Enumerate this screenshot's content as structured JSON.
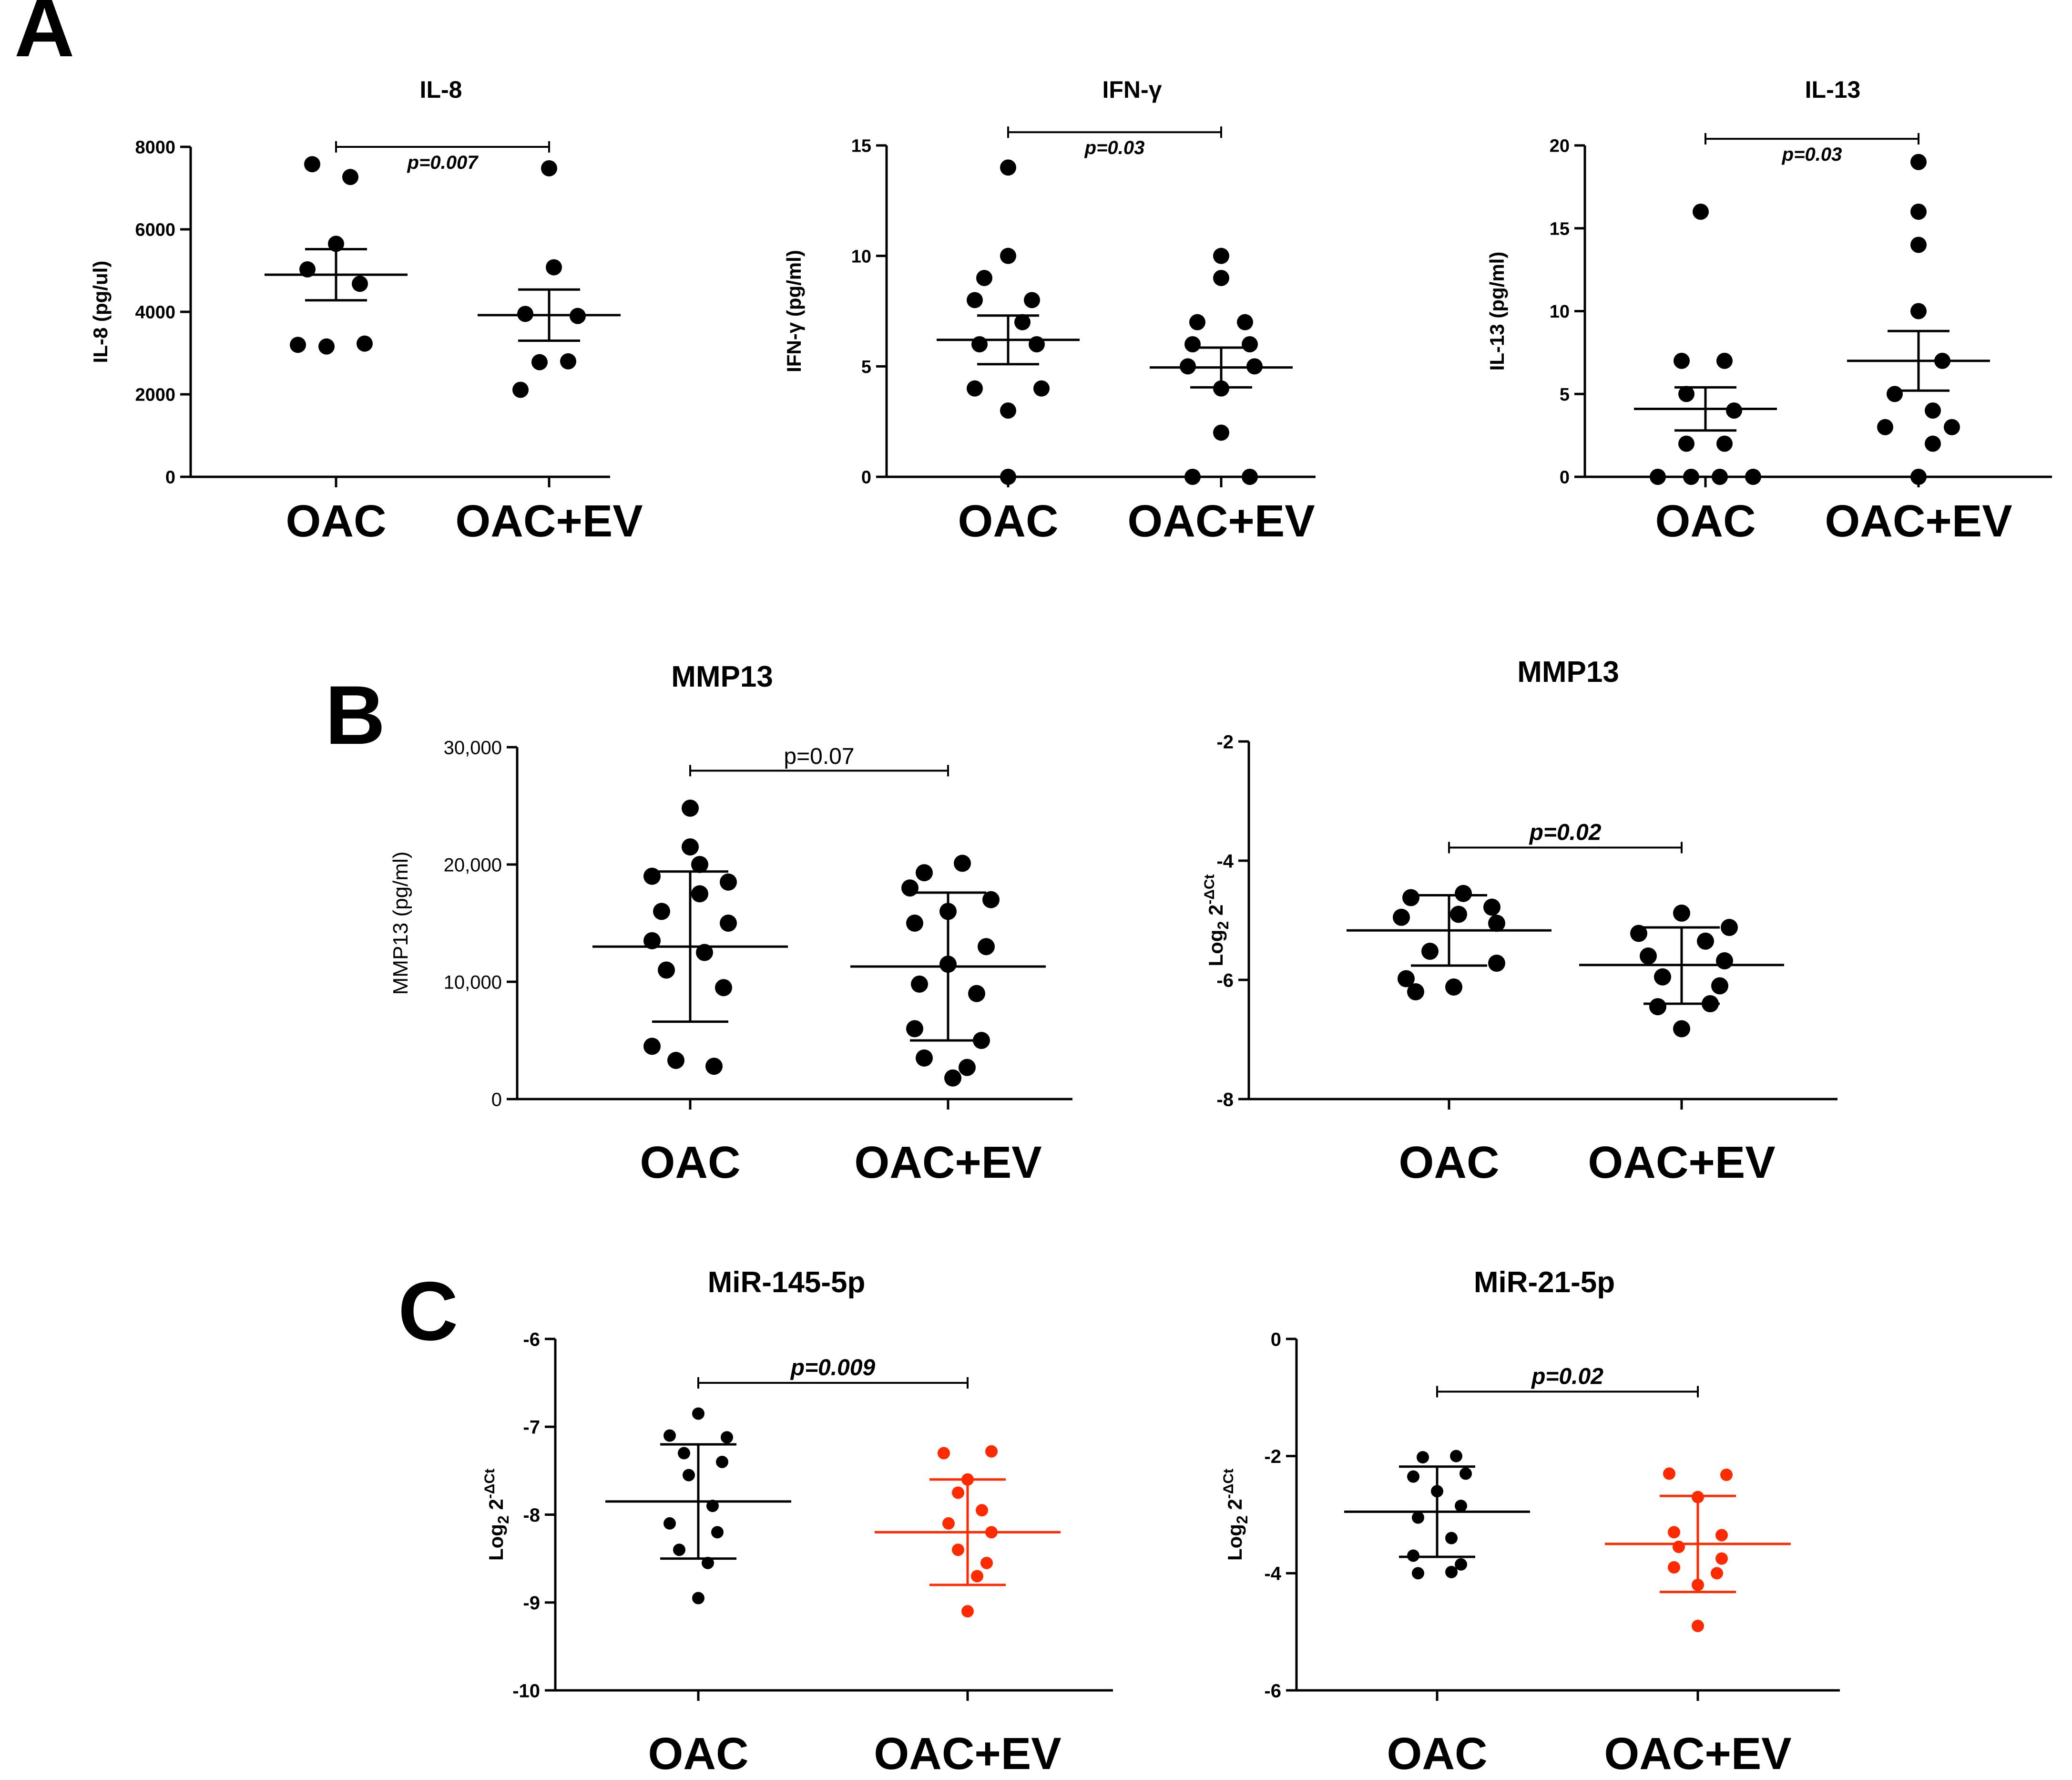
{
  "panel_labels": [
    "A",
    "B",
    "C"
  ],
  "chart_data": [
    {
      "id": "il8",
      "panel": "A",
      "type": "scatter",
      "title": "IL-8",
      "ylabel": "IL-8 (pg/ul)",
      "categories": [
        "OAC",
        "OAC+EV"
      ],
      "ylim": [
        0,
        8000
      ],
      "yticks": [
        0,
        2000,
        4000,
        6000,
        8000
      ],
      "ytick_labels": [
        "0",
        "2000",
        "4000",
        "6000",
        "8000"
      ],
      "series": [
        {
          "name": "OAC",
          "color": "#000000",
          "mean": 4900,
          "err_low": 4280,
          "err_high": 5520,
          "points": [
            [
              -0.05,
              7580
            ],
            [
              0.03,
              7270
            ],
            [
              0,
              5650
            ],
            [
              -0.06,
              5030
            ],
            [
              0.05,
              4680
            ],
            [
              -0.08,
              3200
            ],
            [
              -0.02,
              3160
            ],
            [
              0.06,
              3230
            ]
          ]
        },
        {
          "name": "OAC+EV",
          "color": "#000000",
          "mean": 3920,
          "err_low": 3300,
          "err_high": 4540,
          "points": [
            [
              0,
              7480
            ],
            [
              0.01,
              5080
            ],
            [
              -0.05,
              3950
            ],
            [
              0.06,
              3900
            ],
            [
              0.04,
              2800
            ],
            [
              -0.02,
              2780
            ],
            [
              -0.06,
              2110
            ]
          ]
        }
      ],
      "sig": {
        "text": "p=0.007",
        "y": 8000
      }
    },
    {
      "id": "ifng",
      "panel": "A",
      "type": "scatter",
      "title": "IFN-γ",
      "ylabel": "IFN-γ (pg/ml)",
      "categories": [
        "OAC",
        "OAC+EV"
      ],
      "ylim": [
        0,
        15
      ],
      "yticks": [
        0,
        5,
        10,
        15
      ],
      "ytick_labels": [
        "0",
        "5",
        "10",
        "15"
      ],
      "series": [
        {
          "name": "OAC",
          "color": "#000000",
          "mean": 6.2,
          "err_low": 5.1,
          "err_high": 7.3,
          "points": [
            [
              0,
              14
            ],
            [
              0,
              10
            ],
            [
              -0.05,
              9
            ],
            [
              -0.07,
              8
            ],
            [
              0.05,
              8
            ],
            [
              0.03,
              7
            ],
            [
              -0.06,
              6
            ],
            [
              0.06,
              6
            ],
            [
              -0.07,
              4
            ],
            [
              0.07,
              4
            ],
            [
              0,
              3
            ],
            [
              0,
              0
            ]
          ]
        },
        {
          "name": "OAC+EV",
          "color": "#000000",
          "mean": 4.95,
          "err_low": 4.05,
          "err_high": 5.85,
          "points": [
            [
              0,
              10
            ],
            [
              0,
              9
            ],
            [
              -0.05,
              7
            ],
            [
              0.05,
              7
            ],
            [
              -0.06,
              6
            ],
            [
              0.06,
              6
            ],
            [
              -0.07,
              5
            ],
            [
              0.07,
              5
            ],
            [
              0,
              4
            ],
            [
              0,
              2
            ],
            [
              -0.06,
              0
            ],
            [
              0.06,
              0
            ]
          ]
        }
      ],
      "sig": {
        "text": "p=0.03",
        "y": 15.6
      }
    },
    {
      "id": "il13",
      "panel": "A",
      "type": "scatter",
      "title": "IL-13",
      "ylabel": "IL-13 (pg/ml)",
      "categories": [
        "OAC",
        "OAC+EV"
      ],
      "ylim": [
        0,
        20
      ],
      "yticks": [
        0,
        5,
        10,
        15,
        20
      ],
      "ytick_labels": [
        "0",
        "5",
        "10",
        "15",
        "20"
      ],
      "series": [
        {
          "name": "OAC",
          "color": "#000000",
          "mean": 4.1,
          "err_low": 2.8,
          "err_high": 5.4,
          "points": [
            [
              -0.01,
              16
            ],
            [
              -0.05,
              7
            ],
            [
              0.04,
              7
            ],
            [
              -0.04,
              5
            ],
            [
              0.06,
              4
            ],
            [
              -0.04,
              2
            ],
            [
              0.04,
              2
            ],
            [
              -0.1,
              0
            ],
            [
              -0.03,
              0
            ],
            [
              0.03,
              0
            ],
            [
              0.1,
              0
            ]
          ]
        },
        {
          "name": "OAC+EV",
          "color": "#000000",
          "mean": 7.0,
          "err_low": 5.2,
          "err_high": 8.8,
          "points": [
            [
              0,
              19
            ],
            [
              0,
              16
            ],
            [
              0,
              14
            ],
            [
              0,
              10
            ],
            [
              0.05,
              7
            ],
            [
              -0.05,
              5
            ],
            [
              0.03,
              4
            ],
            [
              -0.07,
              3
            ],
            [
              0.07,
              3
            ],
            [
              0.03,
              2
            ],
            [
              0,
              0
            ]
          ]
        }
      ],
      "sig": {
        "text": "p=0.03",
        "y": 20.4
      }
    },
    {
      "id": "mmp13_protein",
      "panel": "B",
      "type": "scatter",
      "style": "serif",
      "title": "MMP13",
      "ylabel": "MMP13 (pg/ml)",
      "categories": [
        "OAC",
        "OAC+EV"
      ],
      "ylim": [
        0,
        30000
      ],
      "yticks": [
        0,
        10000,
        20000,
        30000
      ],
      "ytick_labels": [
        "0",
        "10,000",
        "20,000",
        "30,000"
      ],
      "series": [
        {
          "name": "OAC",
          "color": "#000000",
          "mean": 13000,
          "err_low": 6600,
          "err_high": 19400,
          "points": [
            [
              0,
              24800
            ],
            [
              0,
              21500
            ],
            [
              0.02,
              20000
            ],
            [
              -0.08,
              19000
            ],
            [
              0.08,
              18500
            ],
            [
              0.02,
              17500
            ],
            [
              -0.06,
              16000
            ],
            [
              0.08,
              15000
            ],
            [
              -0.08,
              13500
            ],
            [
              0.03,
              12500
            ],
            [
              -0.05,
              11000
            ],
            [
              0.07,
              9500
            ],
            [
              -0.08,
              4500
            ],
            [
              -0.03,
              3300
            ],
            [
              0.05,
              2800
            ]
          ]
        },
        {
          "name": "OAC+EV",
          "color": "#000000",
          "mean": 11300,
          "err_low": 5000,
          "err_high": 17600,
          "points": [
            [
              0.03,
              20100
            ],
            [
              -0.05,
              19300
            ],
            [
              -0.08,
              18000
            ],
            [
              0.09,
              17000
            ],
            [
              0,
              16000
            ],
            [
              -0.07,
              15000
            ],
            [
              0.08,
              13000
            ],
            [
              0,
              11500
            ],
            [
              -0.06,
              9800
            ],
            [
              0.06,
              9000
            ],
            [
              -0.07,
              6000
            ],
            [
              0.07,
              5000
            ],
            [
              -0.05,
              3500
            ],
            [
              0.04,
              2700
            ],
            [
              0.01,
              1800
            ]
          ]
        }
      ],
      "sig": {
        "text": "p=0.07",
        "y": 28000
      }
    },
    {
      "id": "mmp13_expr",
      "panel": "B",
      "type": "scatter",
      "title": "MMP13",
      "ylabel": "Log₂ 2⁻ΔCt",
      "ylabel_parts": {
        "base": "Log",
        "sub": "2",
        "mid": " 2",
        "sup": "-ΔCt"
      },
      "categories": [
        "OAC",
        "OAC+EV"
      ],
      "ylim": [
        -8,
        -2
      ],
      "yticks": [
        -8,
        -6,
        -4,
        -2
      ],
      "ytick_labels": [
        "-8",
        "-6",
        "-4",
        "-2"
      ],
      "series": [
        {
          "name": "OAC",
          "color": "#000000",
          "mean": -5.17,
          "err_low": -5.76,
          "err_high": -4.58,
          "points": [
            [
              -0.08,
              -4.62
            ],
            [
              0.03,
              -4.55
            ],
            [
              0.09,
              -4.78
            ],
            [
              -0.1,
              -4.95
            ],
            [
              0.02,
              -4.9
            ],
            [
              0.1,
              -5.05
            ],
            [
              -0.04,
              -5.52
            ],
            [
              0.1,
              -5.72
            ],
            [
              -0.09,
              -5.98
            ],
            [
              0.01,
              -6.12
            ],
            [
              -0.07,
              -6.2
            ]
          ]
        },
        {
          "name": "OAC+EV",
          "color": "#000000",
          "mean": -5.75,
          "err_low": -6.4,
          "err_high": -5.12
        },
        {
          "name": "OAC+EV_points",
          "color": "#000000",
          "points": [
            [
              0,
              -4.88
            ],
            [
              -0.09,
              -5.22
            ],
            [
              0.1,
              -5.12
            ],
            [
              0.05,
              -5.35
            ],
            [
              -0.07,
              -5.6
            ],
            [
              0.09,
              -5.68
            ],
            [
              -0.04,
              -5.95
            ],
            [
              0.08,
              -6.1
            ],
            [
              0.06,
              -6.4
            ],
            [
              -0.05,
              -6.45
            ],
            [
              0,
              -6.82
            ]
          ]
        }
      ],
      "sig": {
        "text": "p=0.02",
        "y": -3.78
      }
    },
    {
      "id": "mir145",
      "panel": "C",
      "type": "scatter",
      "title": "MiR-145-5p",
      "ylabel": "Log₂ 2⁻ΔCt",
      "ylabel_parts": {
        "base": "Log",
        "sub": "2",
        "mid": " 2",
        "sup": "-ΔCt"
      },
      "categories": [
        "OAC",
        "OAC+EV"
      ],
      "ylim": [
        -10,
        -6
      ],
      "yticks": [
        -10,
        -9,
        -8,
        -7,
        -6
      ],
      "ytick_labels": [
        "-10",
        "-9",
        "-8",
        "-7",
        "-6"
      ],
      "series": [
        {
          "name": "OAC",
          "color": "#000000",
          "mean": -7.85,
          "err_low": -8.5,
          "err_high": -7.2,
          "points": [
            [
              0,
              -6.85
            ],
            [
              -0.06,
              -7.1
            ],
            [
              0.06,
              -7.12
            ],
            [
              -0.03,
              -7.3
            ],
            [
              0.05,
              -7.4
            ],
            [
              -0.02,
              -7.55
            ],
            [
              0.03,
              -7.9
            ],
            [
              -0.06,
              -8.1
            ],
            [
              0.04,
              -8.2
            ],
            [
              -0.04,
              -8.4
            ],
            [
              0.02,
              -8.55
            ],
            [
              0,
              -8.95
            ]
          ]
        },
        {
          "name": "OAC+EV",
          "color": "#ff2a00",
          "mean": -8.2,
          "err_low": -8.8,
          "err_high": -7.6,
          "points": [
            [
              -0.05,
              -7.3
            ],
            [
              0.05,
              -7.28
            ],
            [
              0,
              -7.6
            ],
            [
              -0.02,
              -7.75
            ],
            [
              0.03,
              -7.95
            ],
            [
              -0.04,
              -8.1
            ],
            [
              0.05,
              -8.2
            ],
            [
              -0.02,
              -8.4
            ],
            [
              0.04,
              -8.55
            ],
            [
              0.02,
              -8.7
            ],
            [
              0,
              -9.1
            ]
          ]
        }
      ],
      "sig": {
        "text": "p=0.009",
        "y": -6.5
      }
    },
    {
      "id": "mir21",
      "panel": "C",
      "type": "scatter",
      "title": "MiR-21-5p",
      "ylabel": "Log₂ 2⁻ΔCt",
      "ylabel_parts": {
        "base": "Log",
        "sub": "2",
        "mid": " 2",
        "sup": "-ΔCt"
      },
      "categories": [
        "OAC",
        "OAC+EV"
      ],
      "ylim": [
        -6,
        0
      ],
      "yticks": [
        -6,
        -4,
        -2,
        0
      ],
      "ytick_labels": [
        "-6",
        "-4",
        "-2",
        "0"
      ],
      "series": [
        {
          "name": "OAC",
          "color": "#000000",
          "mean": -2.95,
          "err_low": -3.72,
          "err_high": -2.18,
          "points": [
            [
              -0.03,
              -2.02
            ],
            [
              0.04,
              -2.0
            ],
            [
              -0.05,
              -2.35
            ],
            [
              0.06,
              -2.3
            ],
            [
              0,
              -2.6
            ],
            [
              0.05,
              -2.85
            ],
            [
              -0.04,
              -3.05
            ],
            [
              0.03,
              -3.4
            ],
            [
              -0.05,
              -3.7
            ],
            [
              0.05,
              -3.85
            ],
            [
              -0.04,
              -4.0
            ],
            [
              0.03,
              -3.98
            ]
          ]
        },
        {
          "name": "OAC+EV",
          "color": "#ff2a00",
          "mean": -3.5,
          "err_low": -4.32,
          "err_high": -2.68,
          "points": [
            [
              -0.06,
              -2.3
            ],
            [
              0.06,
              -2.32
            ],
            [
              0,
              -2.7
            ],
            [
              -0.05,
              -3.3
            ],
            [
              0.05,
              -3.35
            ],
            [
              -0.04,
              -3.55
            ],
            [
              0.05,
              -3.75
            ],
            [
              -0.05,
              -3.9
            ],
            [
              0.04,
              -4.0
            ],
            [
              0,
              -4.2
            ],
            [
              0,
              -4.9
            ]
          ]
        }
      ],
      "sig": {
        "text": "p=0.02",
        "y": -0.9
      }
    }
  ]
}
